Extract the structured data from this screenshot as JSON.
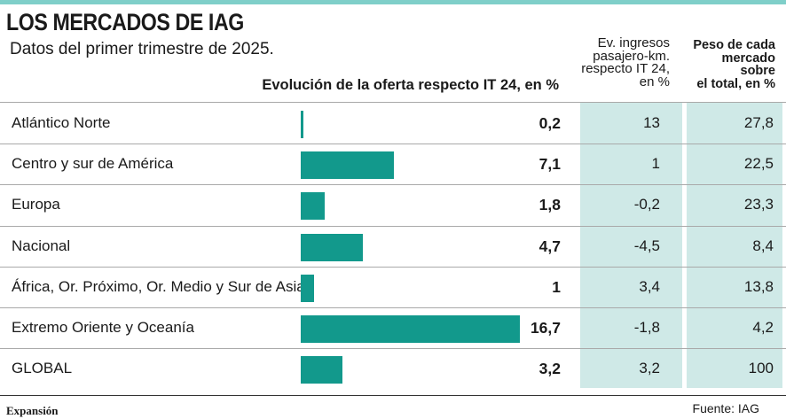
{
  "title": "LOS MERCADOS DE IAG",
  "subtitle": "Datos del primer trimestre de 2025.",
  "headers": {
    "offer": "Evolución de la oferta respecto IT 24, en %",
    "revenue_lines": [
      "Ev. ingresos",
      "pasajero-km.",
      "respecto IT 24,",
      "en %"
    ],
    "weight_lines": [
      "Peso de cada",
      "mercado",
      "sobre",
      "el total, en %"
    ]
  },
  "colors": {
    "bar": "#12998c",
    "shade": "#cfe9e7",
    "top_rule": "#7fcfc9"
  },
  "chart_data": {
    "type": "bar",
    "orientation": "horizontal",
    "title": "LOS MERCADOS DE IAG",
    "subtitle": "Datos del primer trimestre de 2025.",
    "categories": [
      "Atlántico Norte",
      "Centro y sur de América",
      "Europa",
      "Nacional",
      "África, Or. Próximo, Or. Medio y Sur de Asia",
      "Extremo Oriente y Oceanía",
      "GLOBAL"
    ],
    "series": [
      {
        "name": "Evolución de la oferta respecto IT 24, en %",
        "values": [
          0.2,
          7.1,
          1.8,
          4.7,
          1,
          16.7,
          3.2
        ]
      }
    ],
    "value_labels": [
      "0,2",
      "7,1",
      "1,8",
      "4,7",
      "1",
      "16,7",
      "3,2"
    ],
    "table_columns": [
      {
        "name": "Ev. ingresos pasajero-km. respecto IT 24, en %",
        "values": [
          13,
          1,
          -0.2,
          -4.5,
          3.4,
          -1.8,
          3.2
        ],
        "labels": [
          "13",
          "1",
          "-0,2",
          "-4,5",
          "3,4",
          "-1,8",
          "3,2"
        ]
      },
      {
        "name": "Peso de cada mercado sobre el total, en %",
        "values": [
          27.8,
          22.5,
          23.3,
          8.4,
          13.8,
          4.2,
          100
        ],
        "labels": [
          "27,8",
          "22,5",
          "23,3",
          "8,4",
          "13,8",
          "4,2",
          "100"
        ]
      }
    ],
    "grid": false,
    "legend": "none"
  },
  "footer": {
    "brand": "Expansión",
    "source": "Fuente: IAG"
  }
}
